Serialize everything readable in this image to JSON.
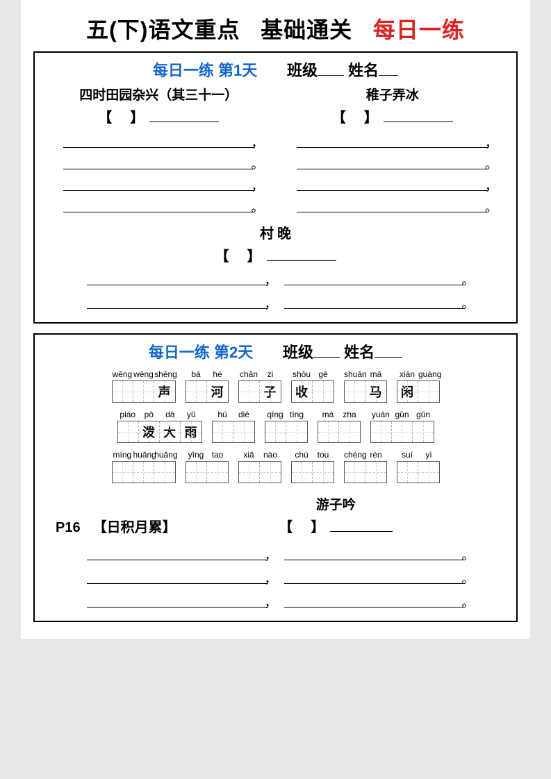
{
  "title": {
    "part1": "五(下)语文重点",
    "part2": "基础通关",
    "part3": "每日一练"
  },
  "section1": {
    "header_blue": "每日一练  第1天",
    "class_label": "班级",
    "name_label": "姓名",
    "poem1_title": "四时田园杂兴（其三十一）",
    "poem2_title": "稚子弄冰",
    "poem3_title": "村  晚",
    "bracket_l": "【",
    "bracket_r": "】",
    "comma": "，",
    "period": "。"
  },
  "section2": {
    "header_blue": "每日一练  第2天",
    "class_label": "班级",
    "name_label": "姓名",
    "row1": [
      {
        "pinyin": [
          "wēng",
          "wēng",
          "shēng"
        ],
        "chars": [
          "",
          "",
          "声"
        ]
      },
      {
        "pinyin": [
          "bá",
          "hé"
        ],
        "chars": [
          "",
          "河"
        ]
      },
      {
        "pinyin": [
          "chǎn",
          "zi"
        ],
        "chars": [
          "",
          "子"
        ]
      },
      {
        "pinyin": [
          "shōu",
          "gē"
        ],
        "chars": [
          "收",
          ""
        ]
      },
      {
        "pinyin": [
          "shuān",
          "mǎ"
        ],
        "chars": [
          "",
          "马"
        ]
      },
      {
        "pinyin": [
          "xián",
          "guàng"
        ],
        "chars": [
          "闲",
          ""
        ]
      }
    ],
    "row2": [
      {
        "pinyin": [
          "piáo",
          "pō",
          "dà",
          "yǔ"
        ],
        "chars": [
          "",
          "泼",
          "大",
          "雨"
        ]
      },
      {
        "pinyin": [
          "hú",
          "dié"
        ],
        "chars": [
          "",
          ""
        ]
      },
      {
        "pinyin": [
          "qīng",
          "tíng"
        ],
        "chars": [
          "",
          ""
        ]
      },
      {
        "pinyin": [
          "mà",
          "zha"
        ],
        "chars": [
          "",
          ""
        ]
      },
      {
        "pinyin": [
          "yuán",
          "gǔn",
          "gǔn"
        ],
        "chars": [
          "",
          "",
          ""
        ]
      }
    ],
    "row3": [
      {
        "pinyin": [
          "míng",
          "huǎng",
          "huǎng"
        ],
        "chars": [
          "",
          "",
          ""
        ]
      },
      {
        "pinyin": [
          "yīng",
          "tao"
        ],
        "chars": [
          "",
          ""
        ]
      },
      {
        "pinyin": [
          "xiā",
          "nào"
        ],
        "chars": [
          "",
          ""
        ]
      },
      {
        "pinyin": [
          "chú",
          "tou"
        ],
        "chars": [
          "",
          ""
        ]
      },
      {
        "pinyin": [
          "chéng",
          "rèn"
        ],
        "chars": [
          "",
          ""
        ]
      },
      {
        "pinyin": [
          "suí",
          "yì"
        ],
        "chars": [
          "",
          ""
        ]
      }
    ],
    "p16": "P16",
    "idiom": "【日积月累】",
    "poem4_title": "游子吟",
    "bracket_l": "【",
    "bracket_r": "】",
    "comma": "，",
    "period": "。"
  }
}
